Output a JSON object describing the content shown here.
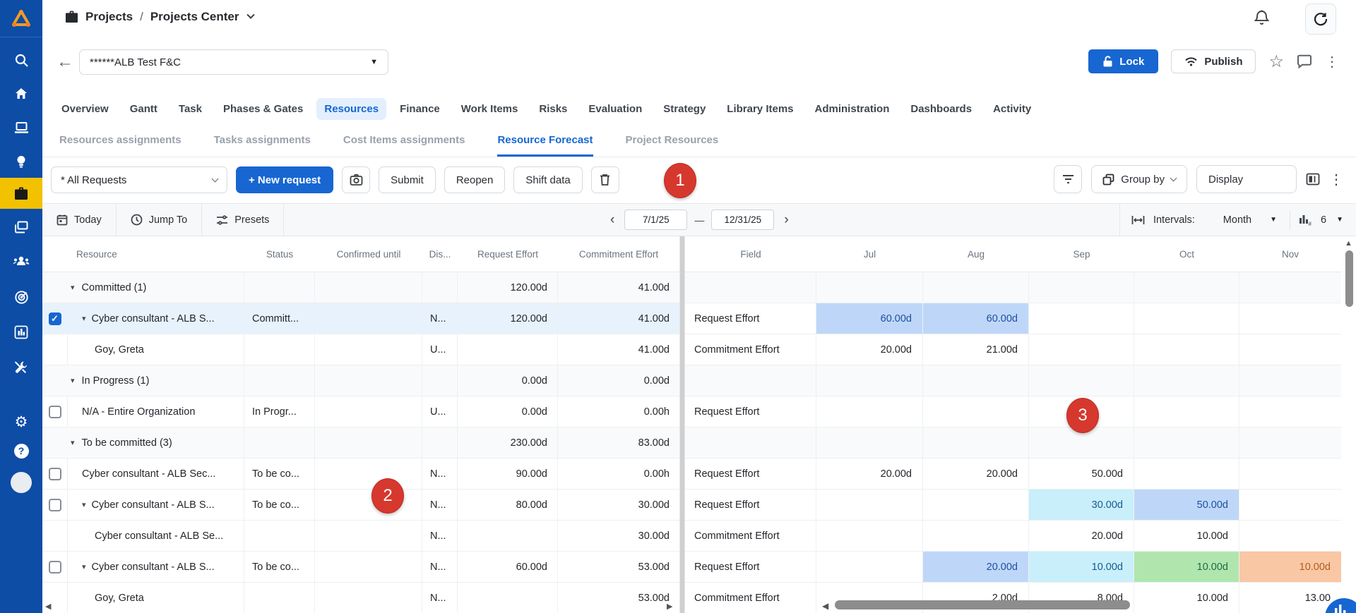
{
  "colors": {
    "accent": "#1766d1",
    "sidebar": "#0d4da6",
    "active_item_bg": "#f2c100",
    "annotation_red": "#d6382e",
    "cell_blue": "#bed7f9",
    "cell_cyan": "#c8effa",
    "cell_green": "#b0e6ae",
    "cell_orange": "#f9c7a4"
  },
  "glyphs": {
    "star": "☆",
    "kebab": "⋮",
    "back": "←",
    "caret_down": "▾",
    "caret_filled": "▼",
    "left_chev": "‹",
    "right_chev": "›",
    "dash": "—",
    "check": "✓",
    "tri_left": "◀",
    "tri_right": "▶",
    "tri_up": "▲",
    "gear": "⚙",
    "help": "?"
  },
  "topbar": {
    "breadcrumb_section": "Projects",
    "breadcrumb_sep": "/",
    "breadcrumb_page": "Projects Center"
  },
  "project_bar": {
    "project_name": "******ALB Test F&C",
    "lock": "Lock",
    "publish": "Publish"
  },
  "tabs": {
    "active": "Resources",
    "items": [
      "Overview",
      "Gantt",
      "Task",
      "Phases & Gates",
      "Resources",
      "Finance",
      "Work Items",
      "Risks",
      "Evaluation",
      "Strategy",
      "Library Items",
      "Administration",
      "Dashboards",
      "Activity"
    ]
  },
  "subtabs": {
    "active": "Resource Forecast",
    "items": [
      "Resources assignments",
      "Tasks assignments",
      "Cost Items assignments",
      "Resource Forecast",
      "Project Resources"
    ]
  },
  "toolbar": {
    "requests_filter": "* All Requests",
    "new_request": "+ New request",
    "submit": "Submit",
    "reopen": "Reopen",
    "shift_data": "Shift data",
    "group_by": "Group by",
    "display": "Display"
  },
  "datebar": {
    "today": "Today",
    "jump_to": "Jump To",
    "presets": "Presets",
    "date_from": "7/1/25",
    "date_to": "12/31/25",
    "intervals_label": "Intervals:",
    "interval_value": "Month",
    "chart_columns": "6"
  },
  "table": {
    "left_headers": [
      "Resource",
      "Status",
      "Confirmed until",
      "Dis...",
      "Request Effort",
      "Commitment Effort"
    ],
    "right_headers": [
      "Field",
      "Jul",
      "Aug",
      "Sep",
      "Oct",
      "Nov"
    ],
    "rows": [
      {
        "kind": "group",
        "name": "Committed (1)",
        "status": "",
        "confirmed": "",
        "dis": "",
        "req": "120.00d",
        "commit": "41.00d",
        "field": "",
        "months": [
          null,
          null,
          null,
          null,
          null
        ]
      },
      {
        "kind": "item",
        "selected": true,
        "checkbox": "checked",
        "caret": true,
        "name": "Cyber consultant - ALB S...",
        "status": "Committ...",
        "confirmed": "",
        "dis": "N...",
        "req": "120.00d",
        "commit": "41.00d",
        "field": "Request Effort",
        "months": [
          {
            "v": "60.00d",
            "c": "blue"
          },
          {
            "v": "60.00d",
            "c": "blue"
          },
          null,
          null,
          null
        ]
      },
      {
        "kind": "sub",
        "name": "Goy, Greta",
        "status": "",
        "confirmed": "",
        "dis": "U...",
        "req": "",
        "commit": "41.00d",
        "field": "Commitment Effort",
        "months": [
          {
            "v": "20.00d"
          },
          {
            "v": "21.00d"
          },
          null,
          null,
          null
        ]
      },
      {
        "kind": "group",
        "name": "In Progress (1)",
        "status": "",
        "confirmed": "",
        "dis": "",
        "req": "0.00d",
        "commit": "0.00d",
        "field": "",
        "months": [
          null,
          null,
          null,
          null,
          null
        ]
      },
      {
        "kind": "item",
        "checkbox": "unchecked",
        "name": "N/A - Entire Organization",
        "status": "In Progr...",
        "confirmed": "",
        "dis": "U...",
        "req": "0.00d",
        "commit": "0.00h",
        "field": "Request Effort",
        "months": [
          null,
          null,
          null,
          null,
          null
        ]
      },
      {
        "kind": "group",
        "name": "To be committed (3)",
        "status": "",
        "confirmed": "",
        "dis": "",
        "req": "230.00d",
        "commit": "83.00d",
        "field": "",
        "months": [
          null,
          null,
          null,
          null,
          null
        ]
      },
      {
        "kind": "item",
        "checkbox": "unchecked",
        "name": "Cyber consultant - ALB Sec...",
        "status": "To be co...",
        "confirmed": "",
        "dis": "N...",
        "req": "90.00d",
        "commit": "0.00h",
        "field": "Request Effort",
        "months": [
          {
            "v": "20.00d"
          },
          {
            "v": "20.00d"
          },
          {
            "v": "50.00d"
          },
          null,
          null
        ]
      },
      {
        "kind": "item",
        "checkbox": "unchecked",
        "caret": true,
        "name": "Cyber consultant - ALB S...",
        "status": "To be co...",
        "confirmed": "",
        "dis": "N...",
        "req": "80.00d",
        "commit": "30.00d",
        "field": "Request Effort",
        "months": [
          null,
          null,
          {
            "v": "30.00d",
            "c": "cyan"
          },
          {
            "v": "50.00d",
            "c": "blue"
          },
          null
        ]
      },
      {
        "kind": "sub",
        "name": "Cyber consultant - ALB Se...",
        "status": "",
        "confirmed": "",
        "dis": "N...",
        "req": "",
        "commit": "30.00d",
        "field": "Commitment Effort",
        "months": [
          null,
          null,
          {
            "v": "20.00d"
          },
          {
            "v": "10.00d"
          },
          null
        ]
      },
      {
        "kind": "item",
        "checkbox": "unchecked",
        "caret": true,
        "name": "Cyber consultant - ALB S...",
        "status": "To be co...",
        "confirmed": "",
        "dis": "N...",
        "req": "60.00d",
        "commit": "53.00d",
        "field": "Request Effort",
        "months": [
          null,
          {
            "v": "20.00d",
            "c": "blue"
          },
          {
            "v": "10.00d",
            "c": "cyan"
          },
          {
            "v": "10.00d",
            "c": "green"
          },
          {
            "v": "10.00d",
            "c": "orange"
          }
        ]
      },
      {
        "kind": "sub",
        "name": "Goy, Greta",
        "status": "",
        "confirmed": "",
        "dis": "N...",
        "req": "",
        "commit": "53.00d",
        "field": "Commitment Effort",
        "months": [
          null,
          {
            "v": "2.00d"
          },
          {
            "v": "8.00d"
          },
          {
            "v": "10.00d"
          },
          {
            "v": "13.00"
          }
        ]
      }
    ]
  },
  "annotations": [
    {
      "label": "1"
    },
    {
      "label": "2"
    },
    {
      "label": "3"
    }
  ]
}
